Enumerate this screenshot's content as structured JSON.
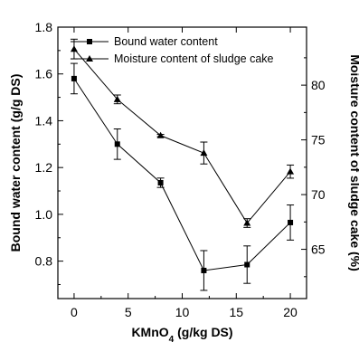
{
  "chart_data": {
    "type": "line",
    "x": [
      0,
      4,
      8,
      12,
      16,
      20
    ],
    "xlim": [
      -1.5,
      21.5
    ],
    "x_ticks": [
      "0",
      "5",
      "10",
      "15",
      "20"
    ],
    "xlabel": {
      "pre": "KMnO",
      "sub": "4",
      "post": " (g/kg DS)"
    },
    "y_left": {
      "label": "Bound water content (g/g DS)",
      "lim": [
        0.64,
        1.8
      ],
      "ticks": [
        "0.8",
        "1.0",
        "1.2",
        "1.4",
        "1.6",
        "1.8"
      ]
    },
    "y_right": {
      "label": "Moisture content of sludge cake (%)",
      "lim": [
        60.5,
        85.3
      ],
      "ticks": [
        "65",
        "70",
        "75",
        "80"
      ]
    },
    "series": [
      {
        "name": "Bound water content",
        "axis": "left",
        "marker": "square",
        "values": [
          1.58,
          1.3,
          1.135,
          0.76,
          0.785,
          0.965
        ],
        "errors": [
          0.065,
          0.065,
          0.02,
          0.085,
          0.08,
          0.075
        ]
      },
      {
        "name": "Moisture content of sludge cake",
        "axis": "right",
        "marker": "triangle",
        "values": [
          83.3,
          78.7,
          75.4,
          73.8,
          67.4,
          72.1
        ],
        "errors": [
          0.9,
          0.4,
          0.1,
          1.0,
          0.4,
          0.6
        ]
      }
    ]
  }
}
